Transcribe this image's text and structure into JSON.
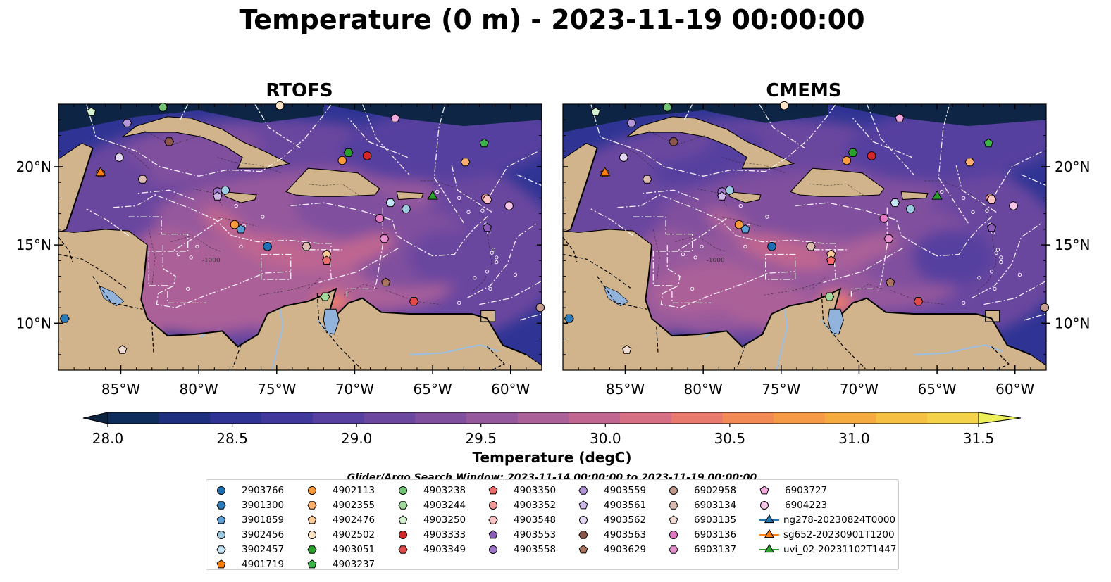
{
  "title": "Temperature (0 m) - 2023-11-19 00:00:00",
  "panels": [
    {
      "name": "RTOFS"
    },
    {
      "name": "CMEMS"
    }
  ],
  "axes": {
    "lon_ticks": [
      "85°W",
      "80°W",
      "75°W",
      "70°W",
      "65°W",
      "60°W"
    ],
    "lat_ticks": [
      "20°N",
      "15°N",
      "10°N"
    ],
    "lon_range": [
      -89,
      -58
    ],
    "lat_range": [
      7,
      24
    ],
    "contour_label": "-1000"
  },
  "colorbar": {
    "label": "Temperature (degC)",
    "min": 27.75,
    "max": 31.75,
    "ticks": [
      "28.0",
      "28.5",
      "29.0",
      "29.5",
      "30.0",
      "30.5",
      "31.0",
      "31.5"
    ],
    "extend": "both",
    "colors": [
      "#0c2440",
      "#0e2c5c",
      "#1e2f80",
      "#2f3494",
      "#41389c",
      "#57409f",
      "#6b479f",
      "#80509e",
      "#96589c",
      "#ab6098",
      "#c06690",
      "#d66f84",
      "#e77a6c",
      "#f28a55",
      "#f59a46",
      "#f6ab40",
      "#f6c044",
      "#f4d24a",
      "#eef05a"
    ]
  },
  "map_colors": {
    "land": "#d2b48c",
    "rivers": "#9ebdda",
    "lake": "#92b4dc"
  },
  "search_window": "Glider/Argo Search Window: 2023-11-14 00:00:00 to 2023-11-19 00:00:00",
  "legend": {
    "columns": [
      [
        {
          "label": "2903766",
          "marker": "circle",
          "color": "#1f6fb4"
        },
        {
          "label": "3901300",
          "marker": "hexagon",
          "color": "#2c7cbd"
        },
        {
          "label": "3901859",
          "marker": "pentagon",
          "color": "#5b9fd6"
        },
        {
          "label": "3902456",
          "marker": "circle",
          "color": "#9ecae1"
        },
        {
          "label": "3902457",
          "marker": "hexagon",
          "color": "#c6e5f5"
        },
        {
          "label": "4901719",
          "marker": "pentagon",
          "color": "#fd7f0e"
        }
      ],
      [
        {
          "label": "4902113",
          "marker": "circle",
          "color": "#fd9a3a"
        },
        {
          "label": "4902355",
          "marker": "hexagon",
          "color": "#fdb06e"
        },
        {
          "label": "4902476",
          "marker": "pentagon",
          "color": "#fdcb9a"
        },
        {
          "label": "4902502",
          "marker": "circle",
          "color": "#fde3c8"
        },
        {
          "label": "4903051",
          "marker": "hexagon",
          "color": "#2ca02c"
        },
        {
          "label": "4903237",
          "marker": "pentagon",
          "color": "#3cb44b"
        }
      ],
      [
        {
          "label": "4903238",
          "marker": "circle",
          "color": "#74c476"
        },
        {
          "label": "4903244",
          "marker": "hexagon",
          "color": "#a1d99b"
        },
        {
          "label": "4903250",
          "marker": "pentagon",
          "color": "#d4f2cf"
        },
        {
          "label": "4903333",
          "marker": "circle",
          "color": "#d62728"
        },
        {
          "label": "4903349",
          "marker": "hexagon",
          "color": "#e34a4a"
        }
      ],
      [
        {
          "label": "4903350",
          "marker": "pentagon",
          "color": "#ef6b6b"
        },
        {
          "label": "4903352",
          "marker": "circle",
          "color": "#f59a9a"
        },
        {
          "label": "4903548",
          "marker": "hexagon",
          "color": "#fbc4c4"
        },
        {
          "label": "4903553",
          "marker": "pentagon",
          "color": "#8a5cb8"
        },
        {
          "label": "4903558",
          "marker": "circle",
          "color": "#9f77cd"
        }
      ],
      [
        {
          "label": "4903559",
          "marker": "hexagon",
          "color": "#b497d9"
        },
        {
          "label": "4903561",
          "marker": "pentagon",
          "color": "#cdb8e8"
        },
        {
          "label": "4903562",
          "marker": "circle",
          "color": "#e4d7f2"
        },
        {
          "label": "4903563",
          "marker": "hexagon",
          "color": "#8c564b"
        },
        {
          "label": "4903629",
          "marker": "pentagon",
          "color": "#a9735f"
        }
      ],
      [
        {
          "label": "6902958",
          "marker": "circle",
          "color": "#c49c8e"
        },
        {
          "label": "6903134",
          "marker": "hexagon",
          "color": "#dcbbb0"
        },
        {
          "label": "6903135",
          "marker": "pentagon",
          "color": "#f1dcd4"
        },
        {
          "label": "6903136",
          "marker": "circle",
          "color": "#e377c2"
        },
        {
          "label": "6903137",
          "marker": "hexagon",
          "color": "#e98fd0"
        }
      ],
      [
        {
          "label": "6903727",
          "marker": "pentagon",
          "color": "#f2a9dc"
        },
        {
          "label": "6904223",
          "marker": "circle",
          "color": "#f7c5e8"
        },
        {
          "label": "ng278-20230824T0000",
          "marker": "triangle-line",
          "color": "#1f77b4"
        },
        {
          "label": "sg652-20230901T1200",
          "marker": "triangle-line",
          "color": "#ff7f0e"
        },
        {
          "label": "uvi_02-20231102T1447",
          "marker": "triangle-line",
          "color": "#2ca02c"
        }
      ]
    ]
  }
}
